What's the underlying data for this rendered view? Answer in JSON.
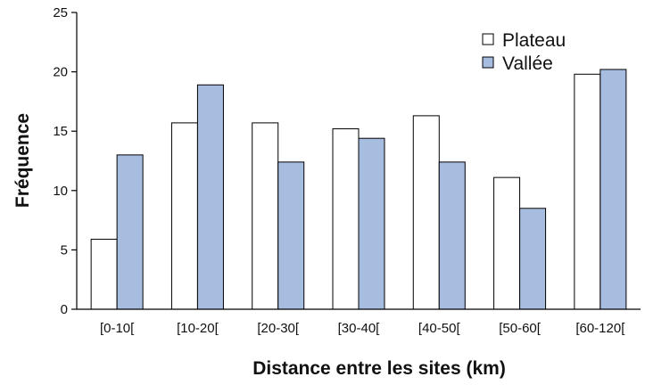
{
  "chart_data": {
    "type": "bar",
    "title": "",
    "xlabel": "Distance entre les sites (km)",
    "ylabel": "Fréquence",
    "categories": [
      "[0-10[",
      "[10-20[",
      "[20-30[",
      "[30-40[",
      "[40-50[",
      "[50-60[",
      "[60-120["
    ],
    "series": [
      {
        "name": "Plateau",
        "values": [
          5.9,
          15.7,
          15.7,
          15.2,
          16.3,
          11.1,
          19.8
        ],
        "color": "#ffffff"
      },
      {
        "name": "Vallée",
        "values": [
          13.0,
          18.9,
          12.4,
          14.4,
          12.4,
          8.5,
          20.2
        ],
        "color": "#a6bde0"
      }
    ],
    "ylim": [
      0,
      25
    ],
    "yticks": [
      "0",
      "5",
      "10",
      "15",
      "20",
      "25"
    ],
    "grid": false,
    "legend_position": "top-right"
  }
}
